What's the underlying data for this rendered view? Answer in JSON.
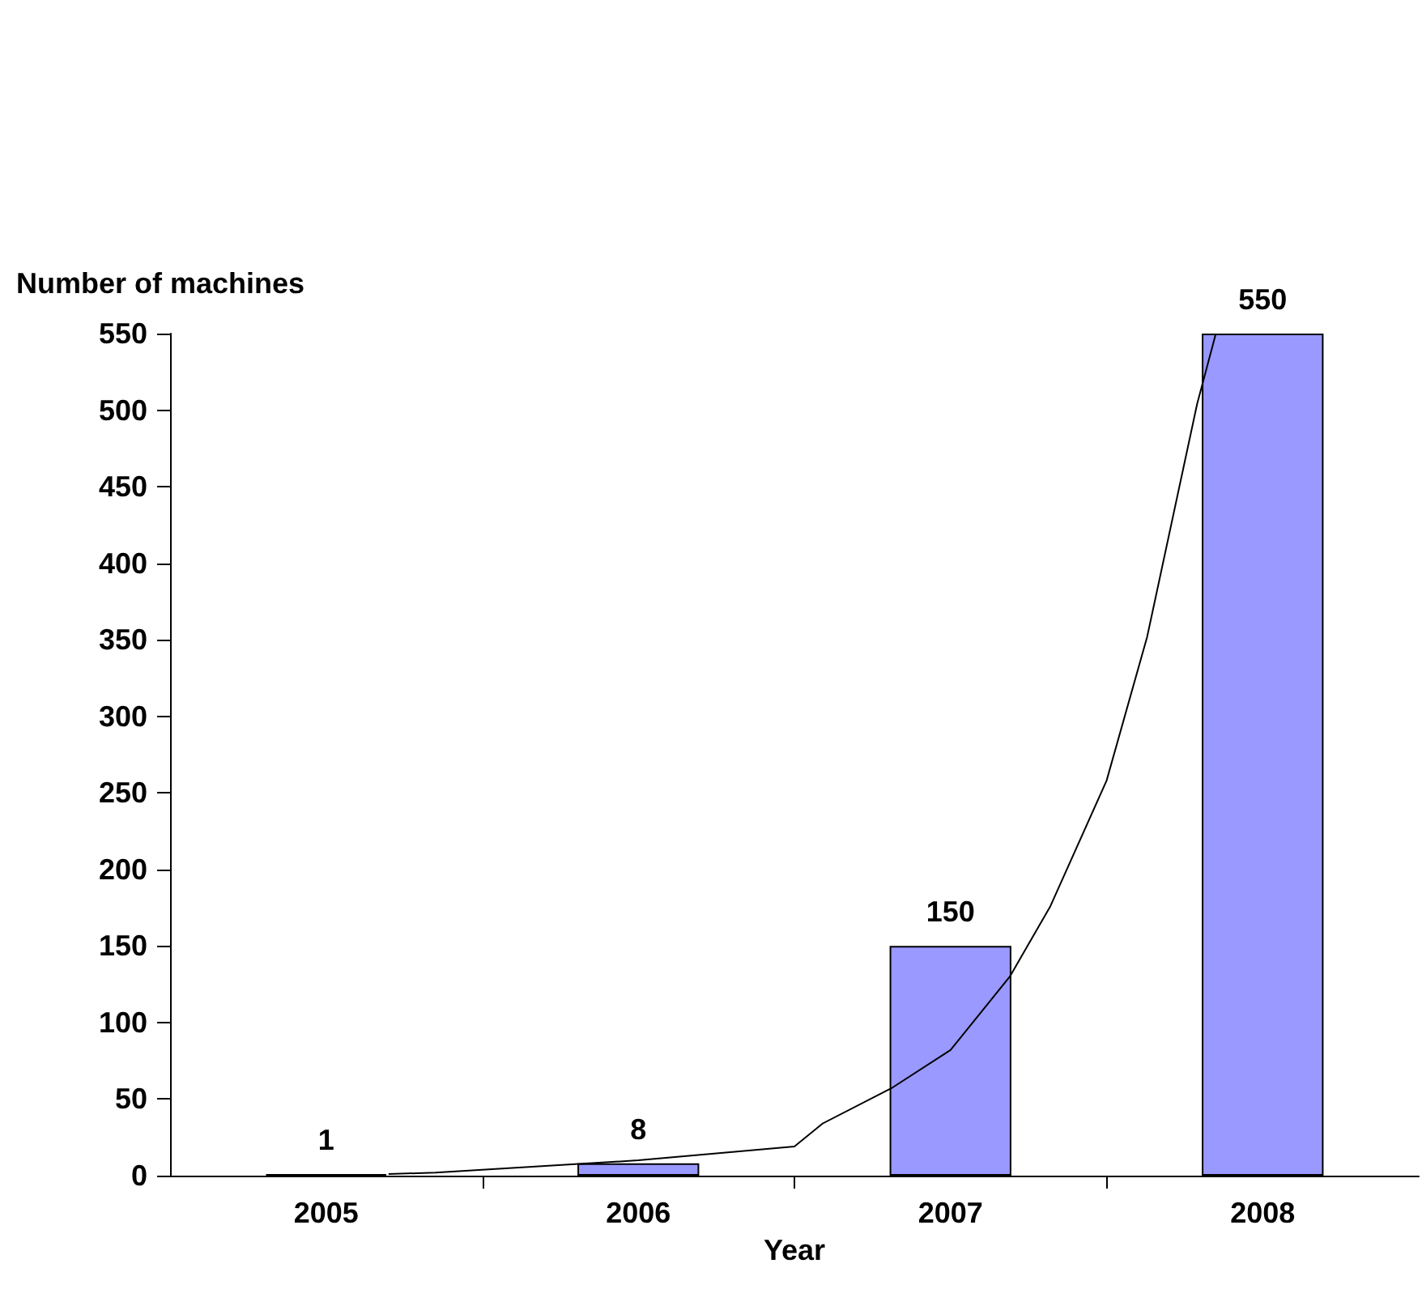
{
  "chart_data": {
    "type": "bar",
    "xlabel": "Year",
    "ylabel": "Number of machines",
    "x": [
      2005,
      2006,
      2007,
      2008
    ],
    "series": [
      {
        "color": "#9999ff",
        "values": [
          1,
          8,
          150,
          550
        ],
        "value_labels": [
          "1",
          "8",
          "150",
          "550"
        ]
      },
      {
        "type": "line",
        "color": "#000000",
        "marker": "none",
        "x": [
          2005.2,
          2005.35,
          2006.0,
          2006.5,
          2006.59,
          2006.81,
          2007.0,
          2007.19,
          2007.32,
          2007.5,
          2007.63,
          2007.79,
          2007.85
        ],
        "values": [
          1,
          2,
          10,
          19,
          34,
          57,
          82,
          130,
          176,
          258,
          352,
          504,
          550
        ]
      }
    ],
    "xlim": [
      2004.5,
      2008.5
    ],
    "xticks": [
      2005,
      2006,
      2007,
      2008,
      {
        "value": 2005.5,
        "label": null
      },
      {
        "value": 2006.5,
        "label": null
      },
      {
        "value": 2007.5,
        "label": null
      }
    ],
    "ylim": [
      0,
      550
    ],
    "yticks": [
      0,
      50,
      100,
      150,
      200,
      250,
      300,
      350,
      400,
      450,
      500,
      550
    ],
    "grid": false
  }
}
